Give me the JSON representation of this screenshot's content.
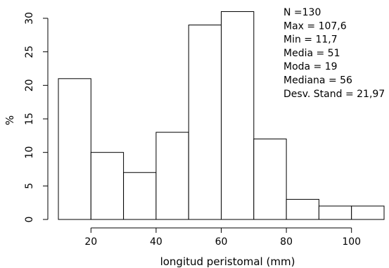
{
  "chart_data": {
    "type": "bar",
    "subtype": "histogram",
    "bins": [
      {
        "from": 10,
        "to": 20,
        "value": 21
      },
      {
        "from": 20,
        "to": 30,
        "value": 10
      },
      {
        "from": 30,
        "to": 40,
        "value": 7
      },
      {
        "from": 40,
        "to": 50,
        "value": 13
      },
      {
        "from": 50,
        "to": 60,
        "value": 29
      },
      {
        "from": 60,
        "to": 70,
        "value": 31
      },
      {
        "from": 70,
        "to": 80,
        "value": 12
      },
      {
        "from": 80,
        "to": 90,
        "value": 3
      },
      {
        "from": 90,
        "to": 100,
        "value": 2
      },
      {
        "from": 100,
        "to": 110,
        "value": 2
      }
    ],
    "xlabel": "longitud peristomal (mm)",
    "ylabel": "%",
    "xlim": [
      10,
      110
    ],
    "ylim": [
      0,
      30
    ],
    "xticks": [
      "20",
      "40",
      "60",
      "80",
      "100"
    ],
    "yticks": [
      "0",
      "5",
      "10",
      "15",
      "20",
      "25",
      "30"
    ],
    "grid": false,
    "annotations": [
      "N =130",
      "Max = 107,6",
      "Min = 11,7",
      "Media = 51",
      "Moda = 19",
      "Mediana = 56",
      "Desv. Stand = 21,97"
    ]
  }
}
